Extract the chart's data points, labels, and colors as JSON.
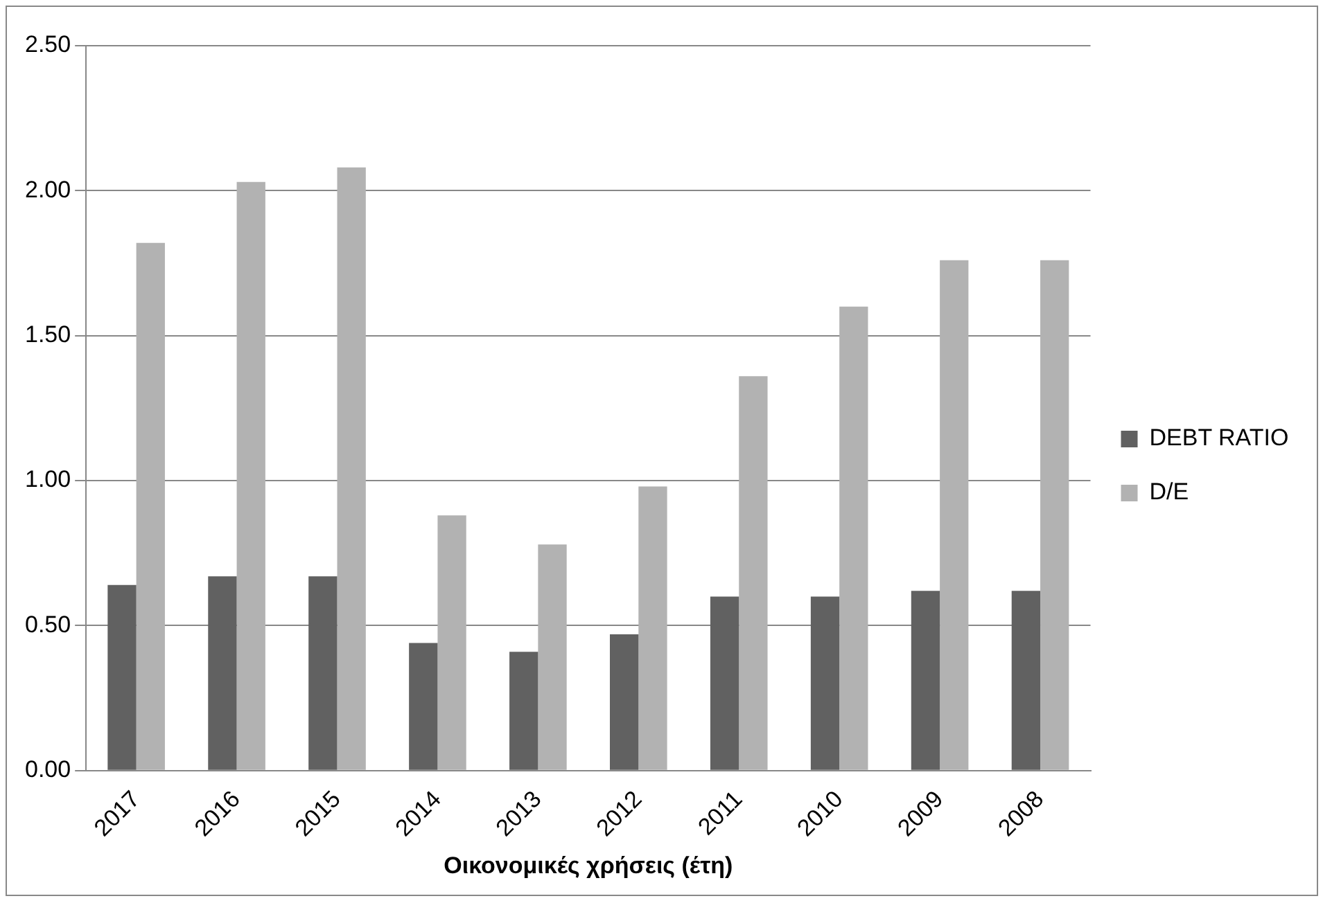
{
  "chart_data": {
    "type": "bar",
    "xlabel": "Οικονομικές χρήσεις (έτη)",
    "categories": [
      "2017",
      "2016",
      "2015",
      "2014",
      "2013",
      "2012",
      "2011",
      "2010",
      "2009",
      "2008"
    ],
    "series": [
      {
        "name": "DEBT RATIO",
        "color": "#616161",
        "values": [
          0.64,
          0.67,
          0.67,
          0.44,
          0.41,
          0.47,
          0.6,
          0.6,
          0.62,
          0.62
        ]
      },
      {
        "name": "D/E",
        "color": "#b2b2b2",
        "values": [
          1.82,
          2.03,
          2.08,
          0.88,
          0.78,
          0.98,
          1.36,
          1.6,
          1.76,
          1.76
        ]
      }
    ],
    "ylim": [
      0,
      2.5
    ],
    "yticks": [
      {
        "value": 0,
        "label": "0.00"
      },
      {
        "value": 0.5,
        "label": "0.50"
      },
      {
        "value": 1,
        "label": "1.00"
      },
      {
        "value": 1.5,
        "label": "1.50"
      },
      {
        "value": 2,
        "label": "2.00"
      },
      {
        "value": 2.5,
        "label": "2.50"
      }
    ],
    "grid": "y",
    "legend": "right"
  }
}
